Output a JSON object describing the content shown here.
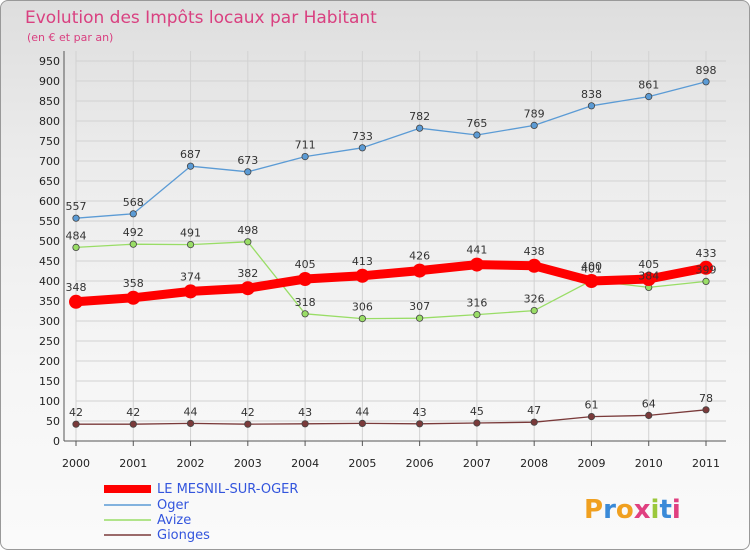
{
  "title": "Evolution des Impôts locaux par Habitant",
  "subtitle": "(en € et par an)",
  "logo": {
    "text": "Proxiti",
    "colors": [
      "#f0a020",
      "#3a8ad8",
      "#f0a020",
      "#e04080",
      "#9bc83c",
      "#3a8ad8",
      "#e04080"
    ]
  },
  "chart_data": {
    "type": "line",
    "x": [
      "2000",
      "2001",
      "2002",
      "2003",
      "2004",
      "2005",
      "2006",
      "2007",
      "2008",
      "2009",
      "2010",
      "2011"
    ],
    "ylim": [
      0,
      950
    ],
    "yticks": [
      0,
      50,
      100,
      150,
      200,
      250,
      300,
      350,
      400,
      450,
      500,
      550,
      600,
      650,
      700,
      750,
      800,
      850,
      900,
      950
    ],
    "grid": true,
    "legend": "bottom-left",
    "series": [
      {
        "name": "LE MESNIL-SUR-OGER",
        "color": "#ff0000",
        "values": [
          348,
          358,
          374,
          382,
          405,
          413,
          426,
          441,
          438,
          400,
          405,
          433
        ]
      },
      {
        "name": "Oger",
        "color": "#5b9bd5",
        "values": [
          557,
          568,
          687,
          673,
          711,
          733,
          782,
          765,
          789,
          838,
          861,
          898
        ]
      },
      {
        "name": "Avize",
        "color": "#99dd66",
        "values": [
          484,
          492,
          491,
          498,
          318,
          306,
          307,
          316,
          326,
          401,
          384,
          399
        ]
      },
      {
        "name": "Gionges",
        "color": "#7a3a3a",
        "values": [
          42,
          42,
          44,
          42,
          43,
          44,
          43,
          45,
          47,
          61,
          64,
          78
        ]
      }
    ]
  }
}
